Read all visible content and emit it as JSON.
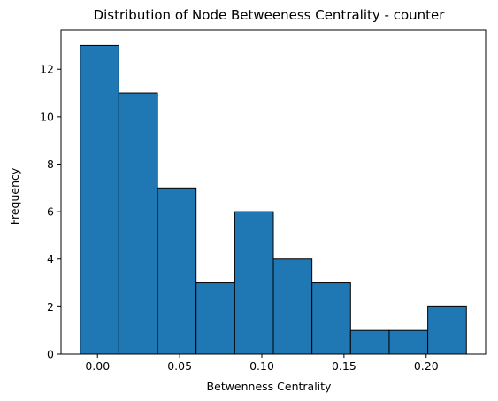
{
  "chart_data": {
    "type": "bar",
    "title": "Distribution of Node Betweeness Centrality - counter",
    "xlabel": "Betwenness Centrality",
    "ylabel": "Frequency",
    "bins": [
      {
        "start": -0.0105,
        "end": 0.013,
        "value": 13
      },
      {
        "start": 0.013,
        "end": 0.0365,
        "value": 11
      },
      {
        "start": 0.0365,
        "end": 0.06,
        "value": 7
      },
      {
        "start": 0.06,
        "end": 0.0835,
        "value": 3
      },
      {
        "start": 0.0835,
        "end": 0.107,
        "value": 6
      },
      {
        "start": 0.107,
        "end": 0.1305,
        "value": 4
      },
      {
        "start": 0.1305,
        "end": 0.154,
        "value": 3
      },
      {
        "start": 0.154,
        "end": 0.1775,
        "value": 1
      },
      {
        "start": 0.1775,
        "end": 0.201,
        "value": 1
      },
      {
        "start": 0.201,
        "end": 0.2245,
        "value": 2
      }
    ],
    "xlim": [
      -0.0222,
      0.2362
    ],
    "ylim": [
      0,
      13.65
    ],
    "xticks": [
      0.0,
      0.05,
      0.1,
      0.15,
      0.2
    ],
    "xtick_labels": [
      "0.00",
      "0.05",
      "0.10",
      "0.15",
      "0.20"
    ],
    "yticks": [
      0,
      2,
      4,
      6,
      8,
      10,
      12
    ],
    "ytick_labels": [
      "0",
      "2",
      "4",
      "6",
      "8",
      "10",
      "12"
    ],
    "bar_color": "#1f77b4",
    "edge_color": "#000000",
    "grid": false,
    "legend": "none"
  }
}
